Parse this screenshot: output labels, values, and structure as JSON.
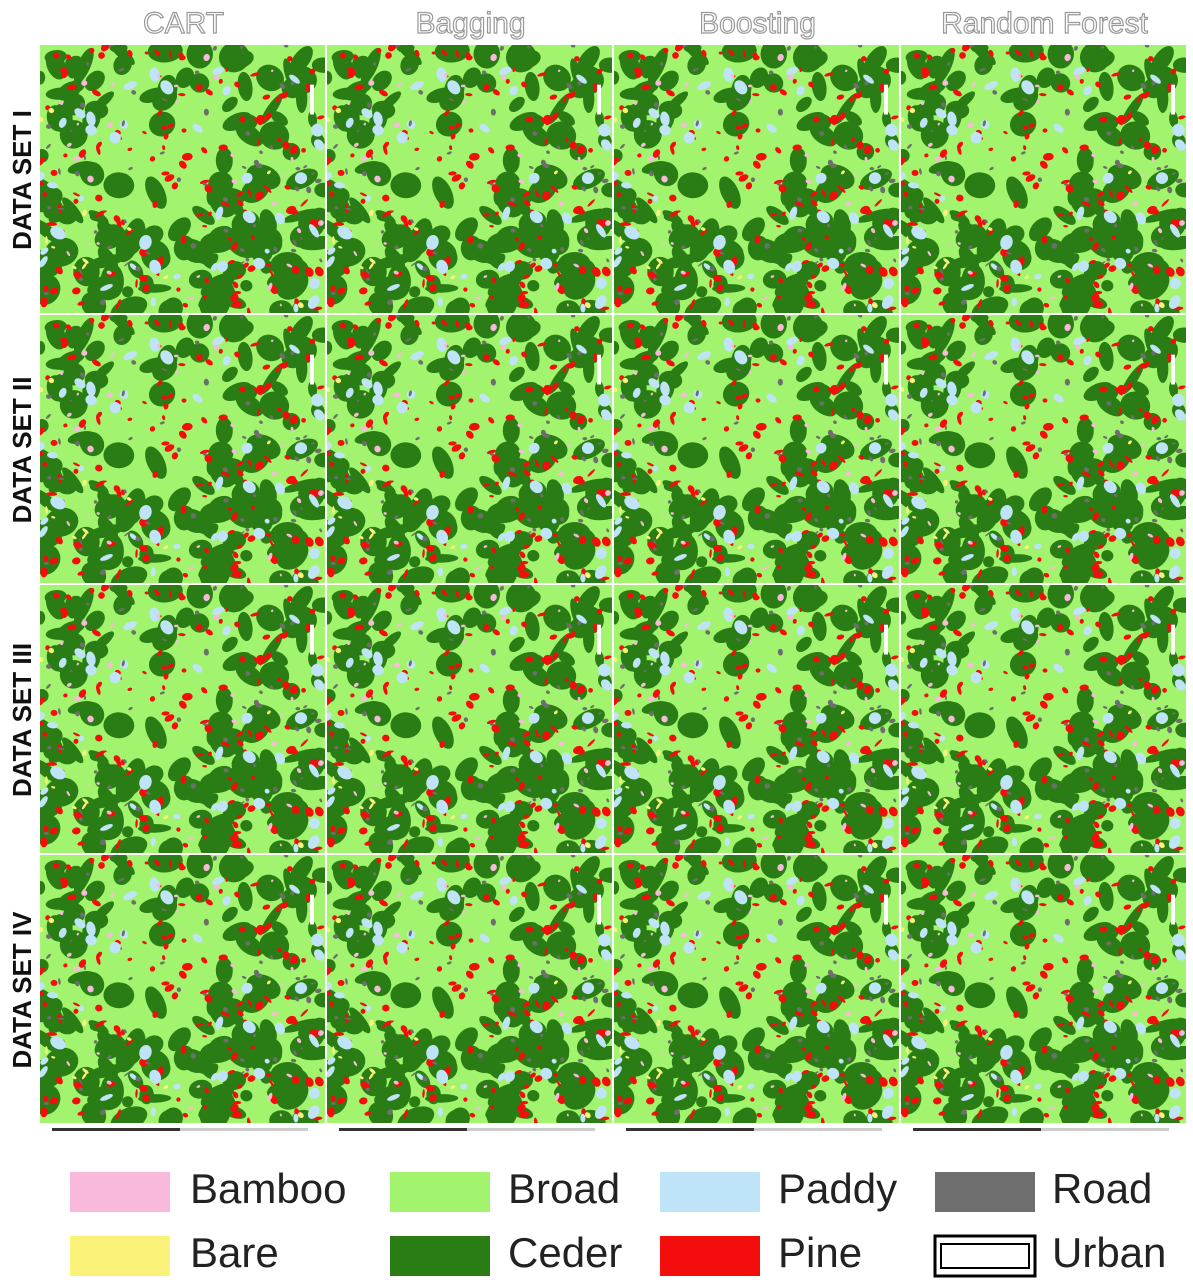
{
  "columns": [
    "CART",
    "Bagging",
    "Boosting",
    "Random Forest"
  ],
  "rows": [
    "DATA SET I",
    "DATA SET II",
    "DATA SET III",
    "DATA SET IV"
  ],
  "legend": [
    {
      "label": "Bamboo",
      "color": "#f8b9dc"
    },
    {
      "label": "Bare",
      "color": "#fbf27a"
    },
    {
      "label": "Broad",
      "color": "#a2f46e"
    },
    {
      "label": "Ceder",
      "color": "#2a7d14"
    },
    {
      "label": "Paddy",
      "color": "#bfe3f7"
    },
    {
      "label": "Pine",
      "color": "#f40d0d"
    },
    {
      "label": "Road",
      "color": "#6e6e6e"
    },
    {
      "label": "Urban",
      "color": "#ffffff"
    }
  ]
}
